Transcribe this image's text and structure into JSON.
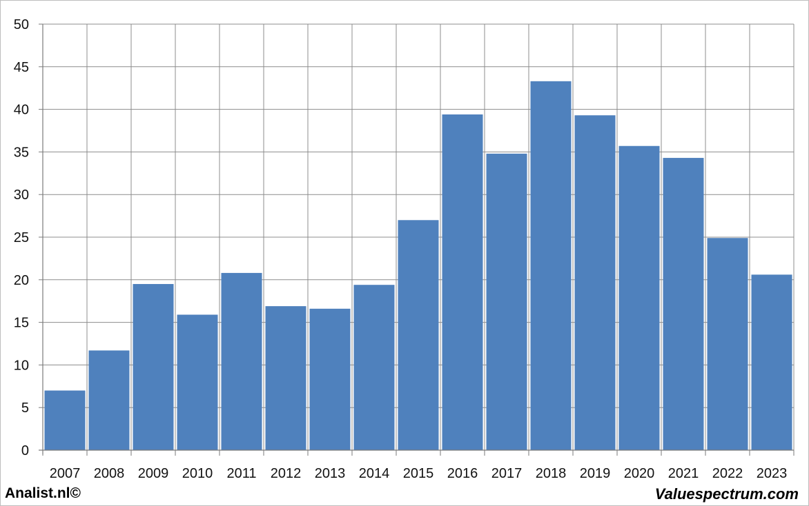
{
  "chart_data": {
    "type": "bar",
    "title": "",
    "xlabel": "",
    "ylabel": "",
    "categories": [
      "2007",
      "2008",
      "2009",
      "2010",
      "2011",
      "2012",
      "2013",
      "2014",
      "2015",
      "2016",
      "2017",
      "2018",
      "2019",
      "2020",
      "2021",
      "2022",
      "2023"
    ],
    "values": [
      7.0,
      11.7,
      19.5,
      15.9,
      20.8,
      16.9,
      16.6,
      19.4,
      27.0,
      39.4,
      34.8,
      43.3,
      39.3,
      35.7,
      34.3,
      24.9,
      20.6
    ],
    "ylim": [
      0,
      50
    ],
    "yticks": [
      0,
      5,
      10,
      15,
      20,
      25,
      30,
      35,
      40,
      45,
      50
    ],
    "grid": true,
    "bar_color": "#4f81bd"
  },
  "footer": {
    "left": "Analist.nl©",
    "right": "Valuespectrum.com"
  }
}
